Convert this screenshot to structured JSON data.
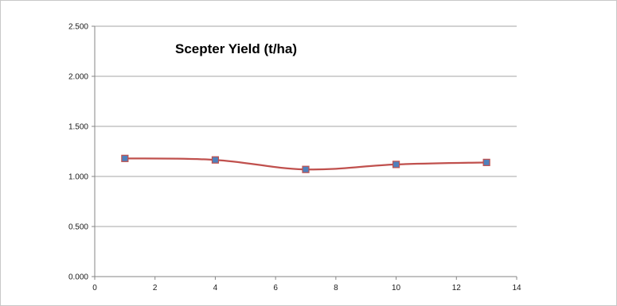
{
  "chart_data": {
    "type": "scatter",
    "title": "Scepter Yield (t/ha)",
    "xlabel": "",
    "ylabel": "",
    "xlim": [
      0,
      14
    ],
    "ylim": [
      0,
      2.5
    ],
    "x_ticks": [
      "0",
      "2",
      "4",
      "6",
      "8",
      "10",
      "12",
      "14"
    ],
    "y_ticks": [
      "0.000",
      "0.500",
      "1.000",
      "1.500",
      "2.000",
      "2.500"
    ],
    "grid": "horizontal",
    "line_style": "smoothed",
    "series": [
      {
        "x": [
          1,
          4,
          7,
          10,
          13
        ],
        "values": [
          1.18,
          1.165,
          1.07,
          1.12,
          1.14
        ],
        "line_color": "#c0504d",
        "marker_color": "#4f81bd"
      }
    ]
  }
}
